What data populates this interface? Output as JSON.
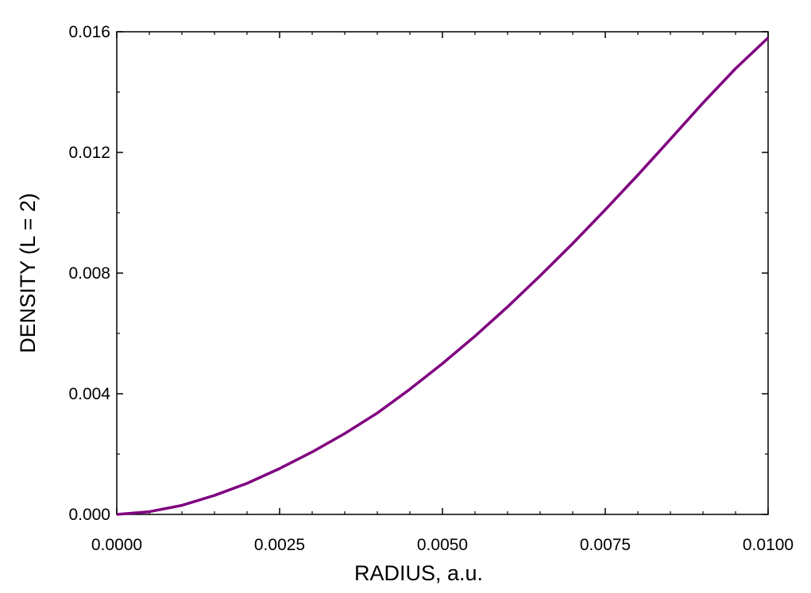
{
  "chart_data": {
    "type": "line",
    "title": "",
    "xlabel": "RADIUS, a.u.",
    "ylabel": "DENSITY (L = 2)",
    "xlim": [
      0.0,
      0.01
    ],
    "ylim": [
      0.0,
      0.016
    ],
    "x_ticks": [
      "0.0000",
      "0.0025",
      "0.0050",
      "0.0075",
      "0.0100"
    ],
    "y_ticks": [
      "0.000",
      "0.004",
      "0.008",
      "0.012",
      "0.016"
    ],
    "grid": false,
    "legend": "none",
    "series": [
      {
        "color": "#800080",
        "x": [
          0.0,
          0.0005,
          0.001,
          0.0015,
          0.002,
          0.0025,
          0.003,
          0.0035,
          0.004,
          0.0045,
          0.005,
          0.0055,
          0.006,
          0.0065,
          0.007,
          0.0075,
          0.008,
          0.0085,
          0.009,
          0.0095,
          0.01
        ],
        "y": [
          0.0,
          9e-05,
          0.0003,
          0.00063,
          0.00103,
          0.00152,
          0.00207,
          0.00268,
          0.00336,
          0.00415,
          0.005,
          0.00591,
          0.00688,
          0.00791,
          0.00898,
          0.0101,
          0.01125,
          0.01244,
          0.01364,
          0.01478,
          0.0158
        ]
      }
    ]
  }
}
